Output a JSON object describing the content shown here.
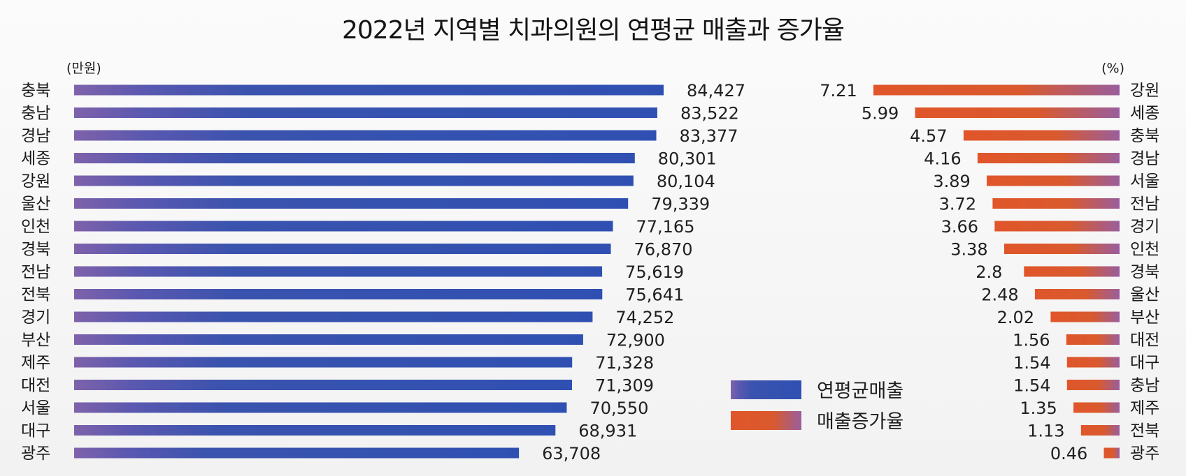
{
  "chart_data": [
    {
      "type": "bar",
      "orientation": "horizontal",
      "title": "2022년 지역별 치과의원의 연평균 매출과 증가율",
      "unit_label": "(만원)",
      "series_name": "연평균매출",
      "color": "#3050b0",
      "categories": [
        "충북",
        "충남",
        "경남",
        "세종",
        "강원",
        "울산",
        "인천",
        "경북",
        "전남",
        "전북",
        "경기",
        "부산",
        "제주",
        "대전",
        "서울",
        "대구",
        "광주"
      ],
      "values": [
        84427,
        83522,
        83377,
        80301,
        80104,
        79339,
        77165,
        76870,
        75619,
        75641,
        74252,
        72900,
        71328,
        71309,
        70550,
        68931,
        63708
      ],
      "value_labels": [
        "84,427",
        "83,522",
        "83,377",
        "80,301",
        "80,104",
        "79,339",
        "77,165",
        "76,870",
        "75,619",
        "75,641",
        "74,252",
        "72,900",
        "71,328",
        "71,309",
        "70,550",
        "68,931",
        "63,708"
      ]
    },
    {
      "type": "bar",
      "orientation": "horizontal",
      "unit_label": "(%)",
      "series_name": "매출증가율",
      "color": "#e0582a",
      "categories": [
        "강원",
        "세종",
        "충북",
        "경남",
        "서울",
        "전남",
        "경기",
        "인천",
        "경북",
        "울산",
        "부산",
        "대전",
        "대구",
        "충남",
        "제주",
        "전북",
        "광주"
      ],
      "values": [
        7.21,
        5.99,
        4.57,
        4.16,
        3.89,
        3.72,
        3.66,
        3.38,
        2.8,
        2.48,
        2.02,
        1.56,
        1.54,
        1.54,
        1.35,
        1.13,
        0.46
      ],
      "value_labels": [
        "7.21",
        "5.99",
        "4.57",
        "4.16",
        "3.89",
        "3.72",
        "3.66",
        "3.38",
        "2.8",
        "2.48",
        "2.02",
        "1.56",
        "1.54",
        "1.54",
        "1.35",
        "1.13",
        "0.46"
      ]
    }
  ],
  "legend": [
    {
      "label": "연평균매출",
      "color": "#3050b0"
    },
    {
      "label": "매출증가율",
      "color": "#e0582a"
    }
  ]
}
